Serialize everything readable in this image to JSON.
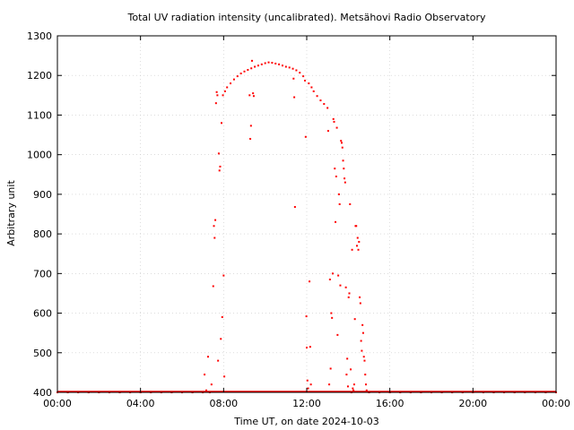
{
  "chart_data": {
    "type": "scatter",
    "title": "Total UV radiation intensity (uncalibrated). Metsähovi Radio Observatory",
    "xlabel": "Time UT, on date 2024-10-03",
    "ylabel": "Arbitrary unit",
    "xlim": [
      "00:00",
      "24:00"
    ],
    "ylim": [
      400,
      1300
    ],
    "x_ticks": [
      "00:00",
      "04:00",
      "08:00",
      "12:00",
      "16:00",
      "20:00",
      "00:00"
    ],
    "y_ticks": [
      400,
      500,
      600,
      700,
      800,
      900,
      1000,
      1100,
      1200,
      1300
    ],
    "grid": true,
    "legend": "none",
    "marker_color": "#ff0000",
    "series": [
      {
        "values": [
          [
            "00:00",
            400
          ],
          [
            "00:30",
            400
          ],
          [
            "01:00",
            400
          ],
          [
            "01:30",
            400
          ],
          [
            "02:00",
            400
          ],
          [
            "02:30",
            400
          ],
          [
            "03:00",
            400
          ],
          [
            "03:30",
            400
          ],
          [
            "04:00",
            400
          ],
          [
            "04:30",
            400
          ],
          [
            "05:00",
            400
          ],
          [
            "05:30",
            400
          ],
          [
            "06:00",
            400
          ],
          [
            "06:30",
            400
          ],
          [
            "07:00",
            400
          ],
          [
            "07:05",
            445
          ],
          [
            "07:10",
            405
          ],
          [
            "07:15",
            490
          ],
          [
            "07:20",
            400
          ],
          [
            "07:25",
            420
          ],
          [
            "07:30",
            668
          ],
          [
            "07:32",
            820
          ],
          [
            "07:34",
            790
          ],
          [
            "07:36",
            835
          ],
          [
            "07:38",
            1130
          ],
          [
            "07:40",
            1158
          ],
          [
            "07:42",
            1150
          ],
          [
            "07:44",
            480
          ],
          [
            "07:46",
            1003
          ],
          [
            "07:48",
            960
          ],
          [
            "07:50",
            970
          ],
          [
            "07:52",
            535
          ],
          [
            "07:54",
            1080
          ],
          [
            "07:56",
            590
          ],
          [
            "07:58",
            1150
          ],
          [
            "08:00",
            695
          ],
          [
            "08:02",
            440
          ],
          [
            "08:04",
            1160
          ],
          [
            "08:10",
            1170
          ],
          [
            "08:20",
            1180
          ],
          [
            "08:30",
            1190
          ],
          [
            "08:40",
            1198
          ],
          [
            "08:50",
            1205
          ],
          [
            "09:00",
            1210
          ],
          [
            "09:10",
            1214
          ],
          [
            "09:15",
            1150
          ],
          [
            "09:17",
            1040
          ],
          [
            "09:19",
            1073
          ],
          [
            "09:20",
            1218
          ],
          [
            "09:22",
            1237
          ],
          [
            "09:25",
            1155
          ],
          [
            "09:27",
            1148
          ],
          [
            "09:30",
            1222
          ],
          [
            "09:40",
            1225
          ],
          [
            "09:50",
            1228
          ],
          [
            "10:00",
            1231
          ],
          [
            "10:10",
            1233
          ],
          [
            "10:20",
            1232
          ],
          [
            "10:30",
            1230
          ],
          [
            "10:40",
            1228
          ],
          [
            "10:50",
            1225
          ],
          [
            "11:00",
            1222
          ],
          [
            "11:10",
            1220
          ],
          [
            "11:20",
            1217
          ],
          [
            "11:22",
            1192
          ],
          [
            "11:24",
            1145
          ],
          [
            "11:26",
            868
          ],
          [
            "11:30",
            1213
          ],
          [
            "11:40",
            1207
          ],
          [
            "11:50",
            1198
          ],
          [
            "11:55",
            1187
          ],
          [
            "11:57",
            1045
          ],
          [
            "11:59",
            592
          ],
          [
            "12:00",
            513
          ],
          [
            "12:02",
            430
          ],
          [
            "12:04",
            410
          ],
          [
            "12:06",
            1180
          ],
          [
            "12:08",
            680
          ],
          [
            "12:10",
            515
          ],
          [
            "12:12",
            420
          ],
          [
            "12:14",
            1170
          ],
          [
            "12:20",
            1160
          ],
          [
            "12:30",
            1148
          ],
          [
            "12:40",
            1137
          ],
          [
            "12:50",
            1128
          ],
          [
            "13:00",
            1118
          ],
          [
            "13:02",
            1060
          ],
          [
            "13:05",
            420
          ],
          [
            "13:07",
            685
          ],
          [
            "13:09",
            460
          ],
          [
            "13:11",
            600
          ],
          [
            "13:13",
            588
          ],
          [
            "13:15",
            700
          ],
          [
            "13:17",
            1090
          ],
          [
            "13:19",
            1083
          ],
          [
            "13:21",
            965
          ],
          [
            "13:23",
            830
          ],
          [
            "13:25",
            945
          ],
          [
            "13:27",
            1068
          ],
          [
            "13:29",
            545
          ],
          [
            "13:31",
            695
          ],
          [
            "13:33",
            900
          ],
          [
            "13:35",
            875
          ],
          [
            "13:37",
            670
          ],
          [
            "13:39",
            1035
          ],
          [
            "13:41",
            1030
          ],
          [
            "13:43",
            1018
          ],
          [
            "13:45",
            985
          ],
          [
            "13:47",
            965
          ],
          [
            "13:49",
            940
          ],
          [
            "13:51",
            930
          ],
          [
            "13:53",
            665
          ],
          [
            "13:55",
            445
          ],
          [
            "13:57",
            485
          ],
          [
            "13:59",
            415
          ],
          [
            "14:01",
            640
          ],
          [
            "14:03",
            650
          ],
          [
            "14:05",
            875
          ],
          [
            "14:07",
            458
          ],
          [
            "14:09",
            400
          ],
          [
            "14:11",
            760
          ],
          [
            "14:13",
            410
          ],
          [
            "14:15",
            405
          ],
          [
            "14:17",
            420
          ],
          [
            "14:19",
            585
          ],
          [
            "14:21",
            820
          ],
          [
            "14:23",
            820
          ],
          [
            "14:25",
            770
          ],
          [
            "14:27",
            790
          ],
          [
            "14:29",
            760
          ],
          [
            "14:31",
            780
          ],
          [
            "14:33",
            640
          ],
          [
            "14:35",
            625
          ],
          [
            "14:37",
            530
          ],
          [
            "14:39",
            505
          ],
          [
            "14:41",
            570
          ],
          [
            "14:43",
            550
          ],
          [
            "14:45",
            490
          ],
          [
            "14:47",
            480
          ],
          [
            "14:49",
            445
          ],
          [
            "14:51",
            420
          ],
          [
            "14:53",
            405
          ],
          [
            "15:00",
            400
          ],
          [
            "15:30",
            400
          ],
          [
            "16:00",
            400
          ],
          [
            "16:30",
            400
          ],
          [
            "17:00",
            400
          ],
          [
            "17:30",
            400
          ],
          [
            "18:00",
            400
          ],
          [
            "18:30",
            400
          ],
          [
            "19:00",
            400
          ],
          [
            "19:30",
            400
          ],
          [
            "20:00",
            400
          ],
          [
            "20:30",
            400
          ],
          [
            "21:00",
            400
          ],
          [
            "21:30",
            400
          ],
          [
            "22:00",
            400
          ],
          [
            "22:30",
            400
          ],
          [
            "23:00",
            400
          ],
          [
            "23:30",
            400
          ],
          [
            "24:00",
            400
          ]
        ]
      }
    ]
  }
}
